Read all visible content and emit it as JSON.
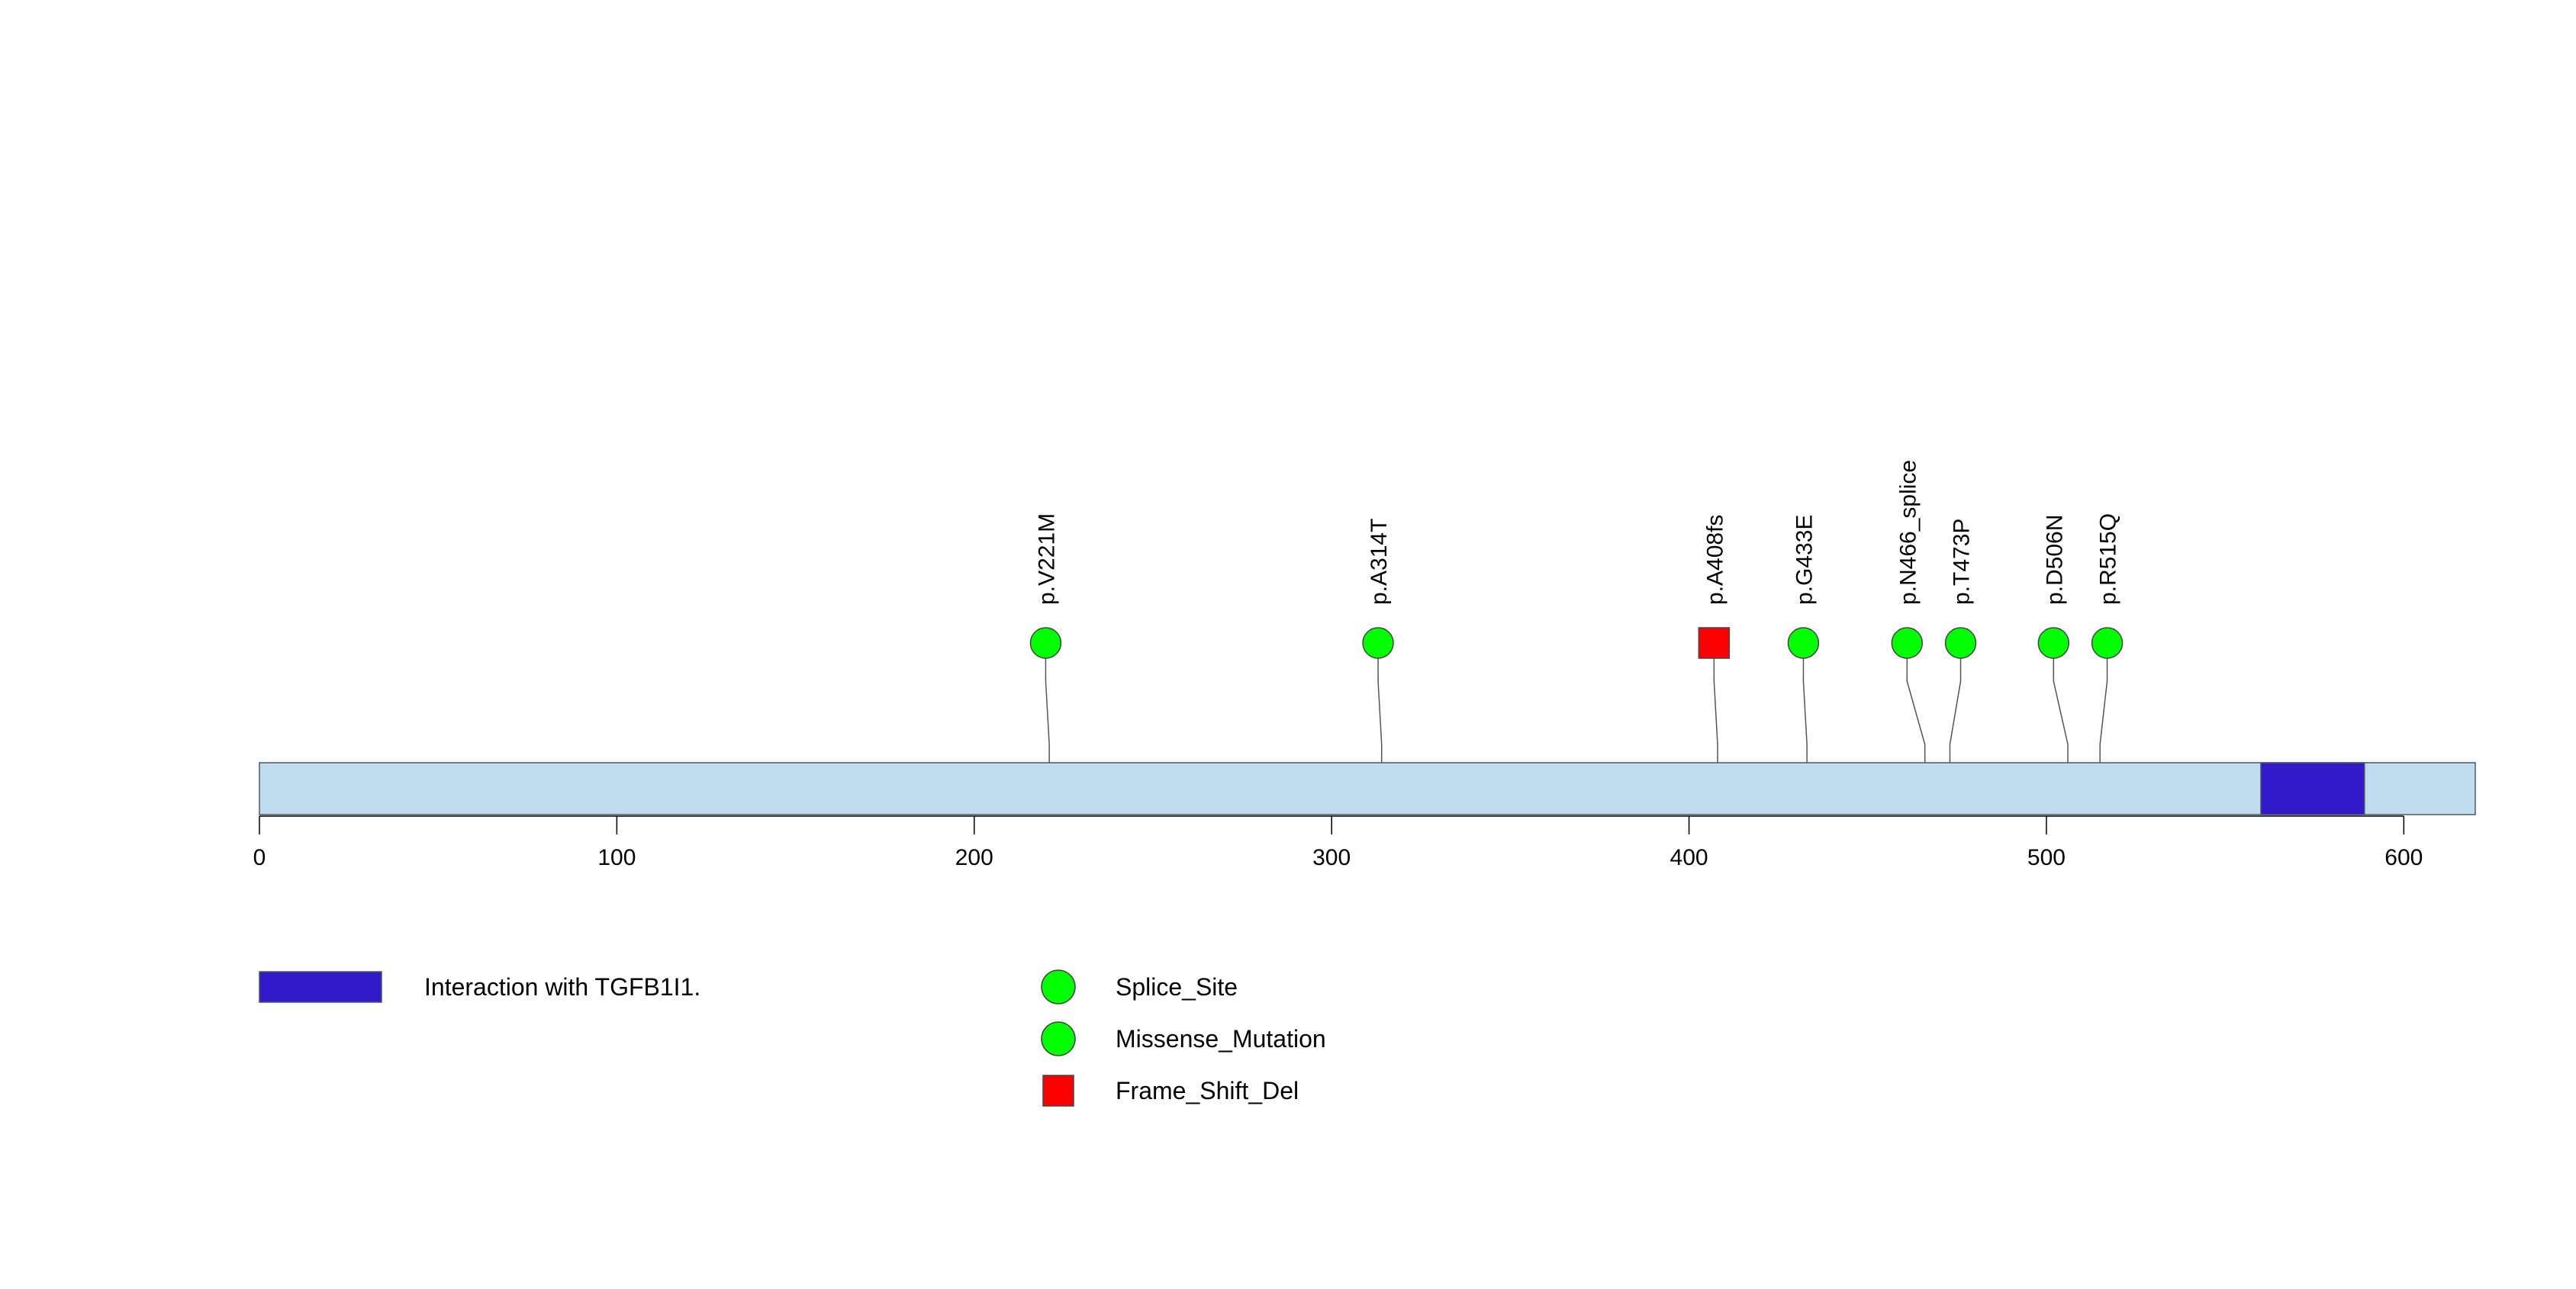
{
  "chart_data": {
    "type": "lollipop",
    "protein_length": 620,
    "xlim": [
      0,
      620
    ],
    "ticks": [
      0,
      100,
      200,
      300,
      400,
      500,
      600
    ],
    "backbone_color": "#c1dcee",
    "domains": [
      {
        "start": 560,
        "end": 589,
        "color": "#3219c9",
        "label": "Interaction with TGFB1I1."
      }
    ],
    "mutations": [
      {
        "label": "p.V221M",
        "position": 221,
        "display_position": 220,
        "type": "Missense_Mutation"
      },
      {
        "label": "p.A314T",
        "position": 314,
        "display_position": 313,
        "type": "Missense_Mutation"
      },
      {
        "label": "p.A408fs",
        "position": 408,
        "display_position": 407,
        "type": "Frame_Shift_Del"
      },
      {
        "label": "p.G433E",
        "position": 433,
        "display_position": 432,
        "type": "Missense_Mutation"
      },
      {
        "label": "p.N466_splice",
        "position": 466,
        "display_position": 461,
        "type": "Splice_Site"
      },
      {
        "label": "p.T473P",
        "position": 473,
        "display_position": 476,
        "type": "Missense_Mutation"
      },
      {
        "label": "p.D506N",
        "position": 506,
        "display_position": 502,
        "type": "Missense_Mutation"
      },
      {
        "label": "p.R515Q",
        "position": 515,
        "display_position": 517,
        "type": "Missense_Mutation"
      }
    ],
    "legend_types": [
      {
        "type": "Splice_Site",
        "shape": "circle",
        "color": "#00ff00"
      },
      {
        "type": "Missense_Mutation",
        "shape": "circle",
        "color": "#00ff00"
      },
      {
        "type": "Frame_Shift_Del",
        "shape": "square",
        "color": "#ff0000"
      }
    ]
  }
}
